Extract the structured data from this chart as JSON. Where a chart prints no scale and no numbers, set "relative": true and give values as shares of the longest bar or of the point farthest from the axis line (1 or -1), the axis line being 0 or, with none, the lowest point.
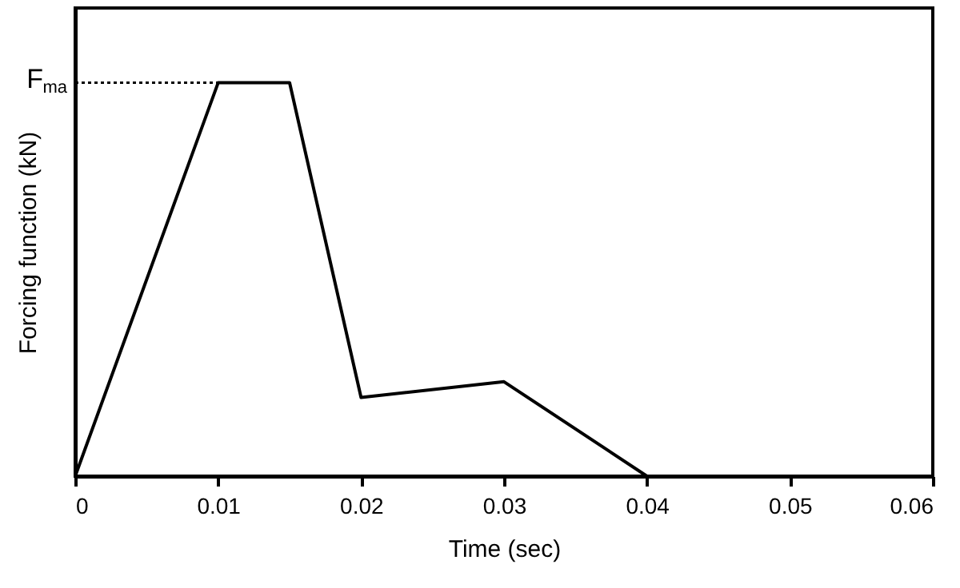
{
  "chart_data": {
    "type": "line",
    "xlabel": "Time (sec)",
    "ylabel": "Forcing function (kN)",
    "relative": true,
    "x": [
      0,
      0.01,
      0.015,
      0.02,
      0.03,
      0.04
    ],
    "series": [
      {
        "color": "#000000",
        "values": [
          0,
          1,
          1,
          0.2,
          0.24,
          0
        ]
      }
    ],
    "xlim": [
      0,
      0.06
    ],
    "xticks": [
      0,
      0.01,
      0.02,
      0.03,
      0.04,
      0.05,
      0.06
    ],
    "ref_lines": [
      {
        "axis": "y",
        "value": 1,
        "label": "F$_{ma}$",
        "color": "#000000",
        "line_style": "dotted"
      }
    ],
    "grid": false,
    "marker": "none",
    "line_style": "solid"
  }
}
